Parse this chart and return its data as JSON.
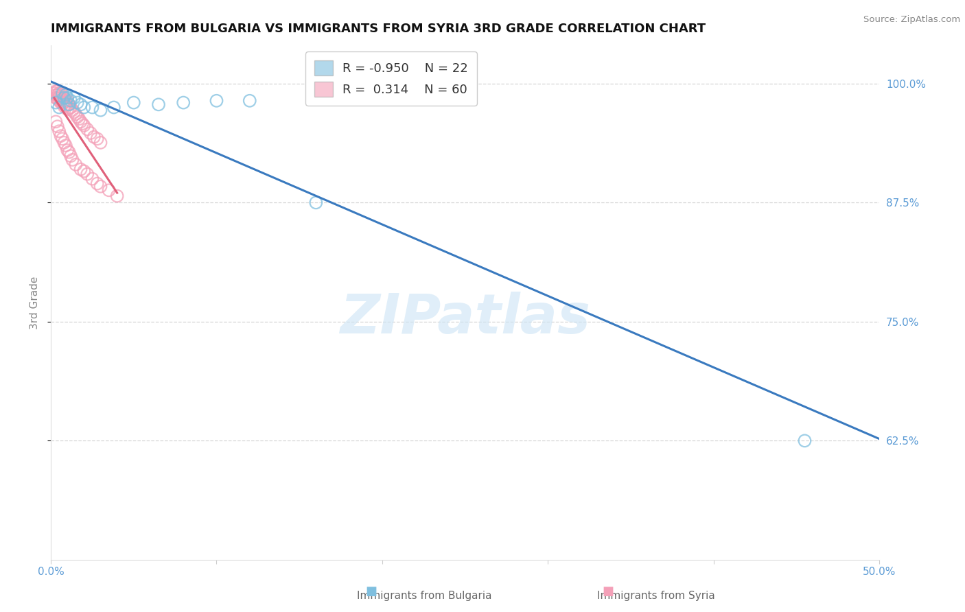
{
  "title": "IMMIGRANTS FROM BULGARIA VS IMMIGRANTS FROM SYRIA 3RD GRADE CORRELATION CHART",
  "source": "Source: ZipAtlas.com",
  "xlabel_blue": "Immigrants from Bulgaria",
  "xlabel_pink": "Immigrants from Syria",
  "ylabel": "3rd Grade",
  "xlim": [
    0.0,
    0.5
  ],
  "ylim": [
    0.5,
    1.04
  ],
  "xtick_vals": [
    0.0,
    0.1,
    0.2,
    0.3,
    0.4,
    0.5
  ],
  "ytick_vals": [
    0.625,
    0.75,
    0.875,
    1.0
  ],
  "legend_blue_r": "-0.950",
  "legend_blue_n": "22",
  "legend_pink_r": " 0.314",
  "legend_pink_n": "60",
  "blue_color": "#7fbfdf",
  "pink_color": "#f4a0b8",
  "blue_line_color": "#3a7abf",
  "pink_line_color": "#e0607a",
  "watermark": "ZIPatlas",
  "tick_label_color": "#5b9bd5",
  "ylabel_color": "#888888",
  "title_fontsize": 13,
  "blue_scatter_x": [
    0.003,
    0.005,
    0.007,
    0.008,
    0.009,
    0.01,
    0.011,
    0.012,
    0.014,
    0.016,
    0.018,
    0.02,
    0.025,
    0.03,
    0.038,
    0.05,
    0.065,
    0.08,
    0.1,
    0.12,
    0.16,
    0.455
  ],
  "blue_scatter_y": [
    0.98,
    0.975,
    0.99,
    0.985,
    0.988,
    0.985,
    0.978,
    0.982,
    0.985,
    0.98,
    0.978,
    0.975,
    0.975,
    0.972,
    0.975,
    0.98,
    0.978,
    0.98,
    0.982,
    0.982,
    0.875,
    0.625
  ],
  "pink_scatter_x": [
    0.002,
    0.003,
    0.003,
    0.003,
    0.004,
    0.004,
    0.004,
    0.005,
    0.005,
    0.005,
    0.006,
    0.006,
    0.006,
    0.007,
    0.007,
    0.007,
    0.008,
    0.008,
    0.008,
    0.009,
    0.009,
    0.01,
    0.01,
    0.01,
    0.011,
    0.011,
    0.012,
    0.013,
    0.014,
    0.015,
    0.016,
    0.017,
    0.018,
    0.019,
    0.02,
    0.022,
    0.024,
    0.026,
    0.028,
    0.03,
    0.003,
    0.004,
    0.005,
    0.006,
    0.007,
    0.008,
    0.009,
    0.01,
    0.011,
    0.012,
    0.013,
    0.015,
    0.018,
    0.02,
    0.022,
    0.025,
    0.028,
    0.03,
    0.035,
    0.04
  ],
  "pink_scatter_y": [
    0.99,
    0.992,
    0.988,
    0.985,
    0.992,
    0.988,
    0.984,
    0.99,
    0.986,
    0.982,
    0.99,
    0.985,
    0.98,
    0.988,
    0.984,
    0.979,
    0.985,
    0.98,
    0.976,
    0.982,
    0.977,
    0.982,
    0.978,
    0.973,
    0.978,
    0.974,
    0.975,
    0.972,
    0.97,
    0.968,
    0.965,
    0.963,
    0.96,
    0.958,
    0.956,
    0.952,
    0.948,
    0.944,
    0.942,
    0.938,
    0.96,
    0.955,
    0.95,
    0.945,
    0.942,
    0.938,
    0.935,
    0.93,
    0.928,
    0.924,
    0.92,
    0.915,
    0.91,
    0.908,
    0.905,
    0.9,
    0.895,
    0.892,
    0.888,
    0.882
  ]
}
